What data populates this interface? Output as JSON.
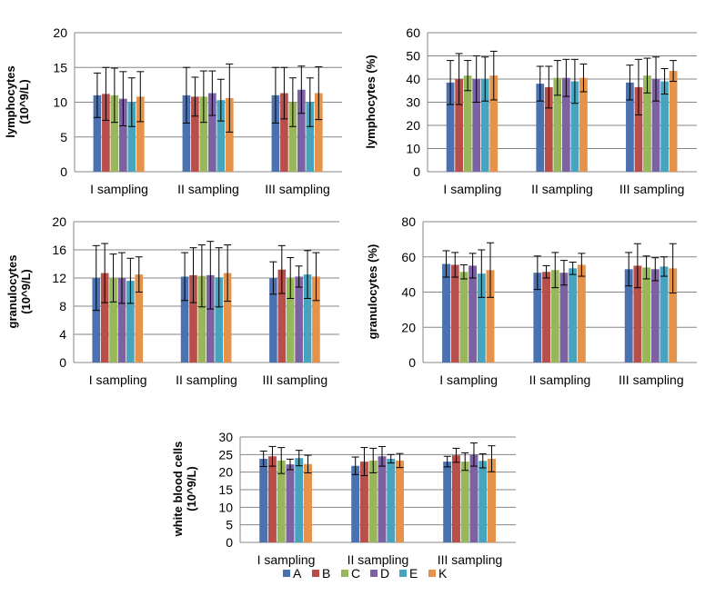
{
  "figure": {
    "series_names": [
      "A",
      "B",
      "C",
      "D",
      "E",
      "K"
    ]
  },
  "colors": {
    "A": "#4a72b0",
    "B": "#b84f4b",
    "C": "#98b75a",
    "D": "#7c62a3",
    "E": "#46a4be",
    "K": "#e5924a",
    "error_bar": "#000000",
    "grid": "#868686"
  },
  "chart_data": [
    {
      "type": "bar",
      "ylabel_lines": [
        "lymphocytes",
        "(10^9/L)"
      ],
      "categories": [
        "I sampling",
        "II sampling",
        "III sampling"
      ],
      "ylim": [
        0,
        20
      ],
      "yticks": [
        0,
        5,
        10,
        15,
        20
      ],
      "grid": true,
      "series": [
        {
          "name": "A",
          "values": [
            11.0,
            11.0,
            11.0
          ],
          "errors": [
            3.2,
            4.0,
            4.0
          ]
        },
        {
          "name": "B",
          "values": [
            11.2,
            10.8,
            11.3
          ],
          "errors": [
            3.8,
            2.8,
            3.7
          ]
        },
        {
          "name": "C",
          "values": [
            11.0,
            10.8,
            10.0
          ],
          "errors": [
            3.9,
            3.7,
            3.5
          ]
        },
        {
          "name": "D",
          "values": [
            10.5,
            11.3,
            11.8
          ],
          "errors": [
            3.9,
            3.2,
            3.4
          ]
        },
        {
          "name": "E",
          "values": [
            10.0,
            10.3,
            10.0
          ],
          "errors": [
            3.5,
            3.0,
            3.5
          ]
        },
        {
          "name": "K",
          "values": [
            10.8,
            10.6,
            11.3
          ],
          "errors": [
            3.6,
            4.9,
            3.8
          ]
        }
      ]
    },
    {
      "type": "bar",
      "ylabel_lines": [
        "lymphocytes (%)"
      ],
      "categories": [
        "I sampling",
        "II sampling",
        "III sampling"
      ],
      "ylim": [
        0,
        60
      ],
      "yticks": [
        0,
        10,
        20,
        30,
        40,
        50,
        60
      ],
      "grid": true,
      "series": [
        {
          "name": "A",
          "values": [
            38.5,
            38.0,
            38.5
          ],
          "errors": [
            9.5,
            7.5,
            7.5
          ]
        },
        {
          "name": "B",
          "values": [
            40.0,
            36.5,
            36.5
          ],
          "errors": [
            11.0,
            9.0,
            12.0
          ]
        },
        {
          "name": "C",
          "values": [
            41.5,
            40.5,
            41.5
          ],
          "errors": [
            6.5,
            7.5,
            7.5
          ]
        },
        {
          "name": "D",
          "values": [
            40.0,
            40.5,
            40.0
          ],
          "errors": [
            10.0,
            8.0,
            9.5
          ]
        },
        {
          "name": "E",
          "values": [
            40.0,
            39.0,
            39.0
          ],
          "errors": [
            9.5,
            9.5,
            5.5
          ]
        },
        {
          "name": "K",
          "values": [
            41.5,
            40.5,
            43.5
          ],
          "errors": [
            10.5,
            6.0,
            4.5
          ]
        }
      ]
    },
    {
      "type": "bar",
      "ylabel_lines": [
        "granulocytes",
        "(10^9/L)"
      ],
      "categories": [
        "I sampling",
        "II sampling",
        "III sampling"
      ],
      "ylim": [
        0,
        20
      ],
      "yticks": [
        0,
        4,
        8,
        12,
        16,
        20
      ],
      "grid": true,
      "series": [
        {
          "name": "A",
          "values": [
            12.0,
            12.2,
            12.0
          ],
          "errors": [
            4.6,
            3.4,
            2.3
          ]
        },
        {
          "name": "B",
          "values": [
            12.7,
            12.4,
            13.2
          ],
          "errors": [
            4.2,
            3.9,
            3.4
          ]
        },
        {
          "name": "C",
          "values": [
            12.0,
            12.3,
            12.0
          ],
          "errors": [
            3.4,
            4.4,
            2.9
          ]
        },
        {
          "name": "D",
          "values": [
            12.0,
            12.4,
            12.2
          ],
          "errors": [
            3.6,
            4.8,
            1.5
          ]
        },
        {
          "name": "E",
          "values": [
            11.6,
            12.1,
            12.5
          ],
          "errors": [
            3.2,
            4.2,
            3.4
          ]
        },
        {
          "name": "K",
          "values": [
            12.5,
            12.7,
            12.2
          ],
          "errors": [
            2.5,
            4.0,
            3.4
          ]
        }
      ]
    },
    {
      "type": "bar",
      "ylabel_lines": [
        "granulocytes (%)"
      ],
      "categories": [
        "I sampling",
        "II sampling",
        "III sampling"
      ],
      "ylim": [
        0,
        80
      ],
      "yticks": [
        0,
        20,
        40,
        60,
        80
      ],
      "grid": true,
      "series": [
        {
          "name": "A",
          "values": [
            56.0,
            51.0,
            53.0
          ],
          "errors": [
            7.5,
            9.5,
            9.5
          ]
        },
        {
          "name": "B",
          "values": [
            55.5,
            51.5,
            55.0
          ],
          "errors": [
            7.0,
            3.5,
            12.5
          ]
        },
        {
          "name": "C",
          "values": [
            51.5,
            52.5,
            54.0
          ],
          "errors": [
            4.0,
            10.0,
            6.5
          ]
        },
        {
          "name": "D",
          "values": [
            55.0,
            51.0,
            53.0
          ],
          "errors": [
            7.0,
            7.0,
            6.5
          ]
        },
        {
          "name": "E",
          "values": [
            50.5,
            53.5,
            54.5
          ],
          "errors": [
            13.5,
            3.5,
            5.5
          ]
        },
        {
          "name": "K",
          "values": [
            52.5,
            55.5,
            53.5
          ],
          "errors": [
            15.5,
            6.5,
            14.0
          ]
        }
      ]
    },
    {
      "type": "bar",
      "ylabel_lines": [
        "white blood cells",
        "(10^9/L)"
      ],
      "categories": [
        "I sampling",
        "II sampling",
        "III sampling"
      ],
      "ylim": [
        0,
        30
      ],
      "yticks": [
        0,
        5,
        10,
        15,
        20,
        25,
        30
      ],
      "grid": true,
      "series": [
        {
          "name": "A",
          "values": [
            23.8,
            21.8,
            23.0
          ],
          "errors": [
            2.2,
            2.5,
            1.5
          ]
        },
        {
          "name": "B",
          "values": [
            24.5,
            23.0,
            24.8
          ],
          "errors": [
            2.8,
            4.0,
            2.0
          ]
        },
        {
          "name": "C",
          "values": [
            23.3,
            23.3,
            23.0
          ],
          "errors": [
            3.7,
            3.5,
            2.5
          ]
        },
        {
          "name": "D",
          "values": [
            22.2,
            24.5,
            25.0
          ],
          "errors": [
            1.5,
            2.8,
            3.3
          ]
        },
        {
          "name": "E",
          "values": [
            24.0,
            23.8,
            23.2
          ],
          "errors": [
            2.2,
            1.2,
            2.0
          ]
        },
        {
          "name": "K",
          "values": [
            22.3,
            23.3,
            23.8
          ],
          "errors": [
            2.5,
            2.0,
            3.7
          ]
        }
      ]
    }
  ]
}
